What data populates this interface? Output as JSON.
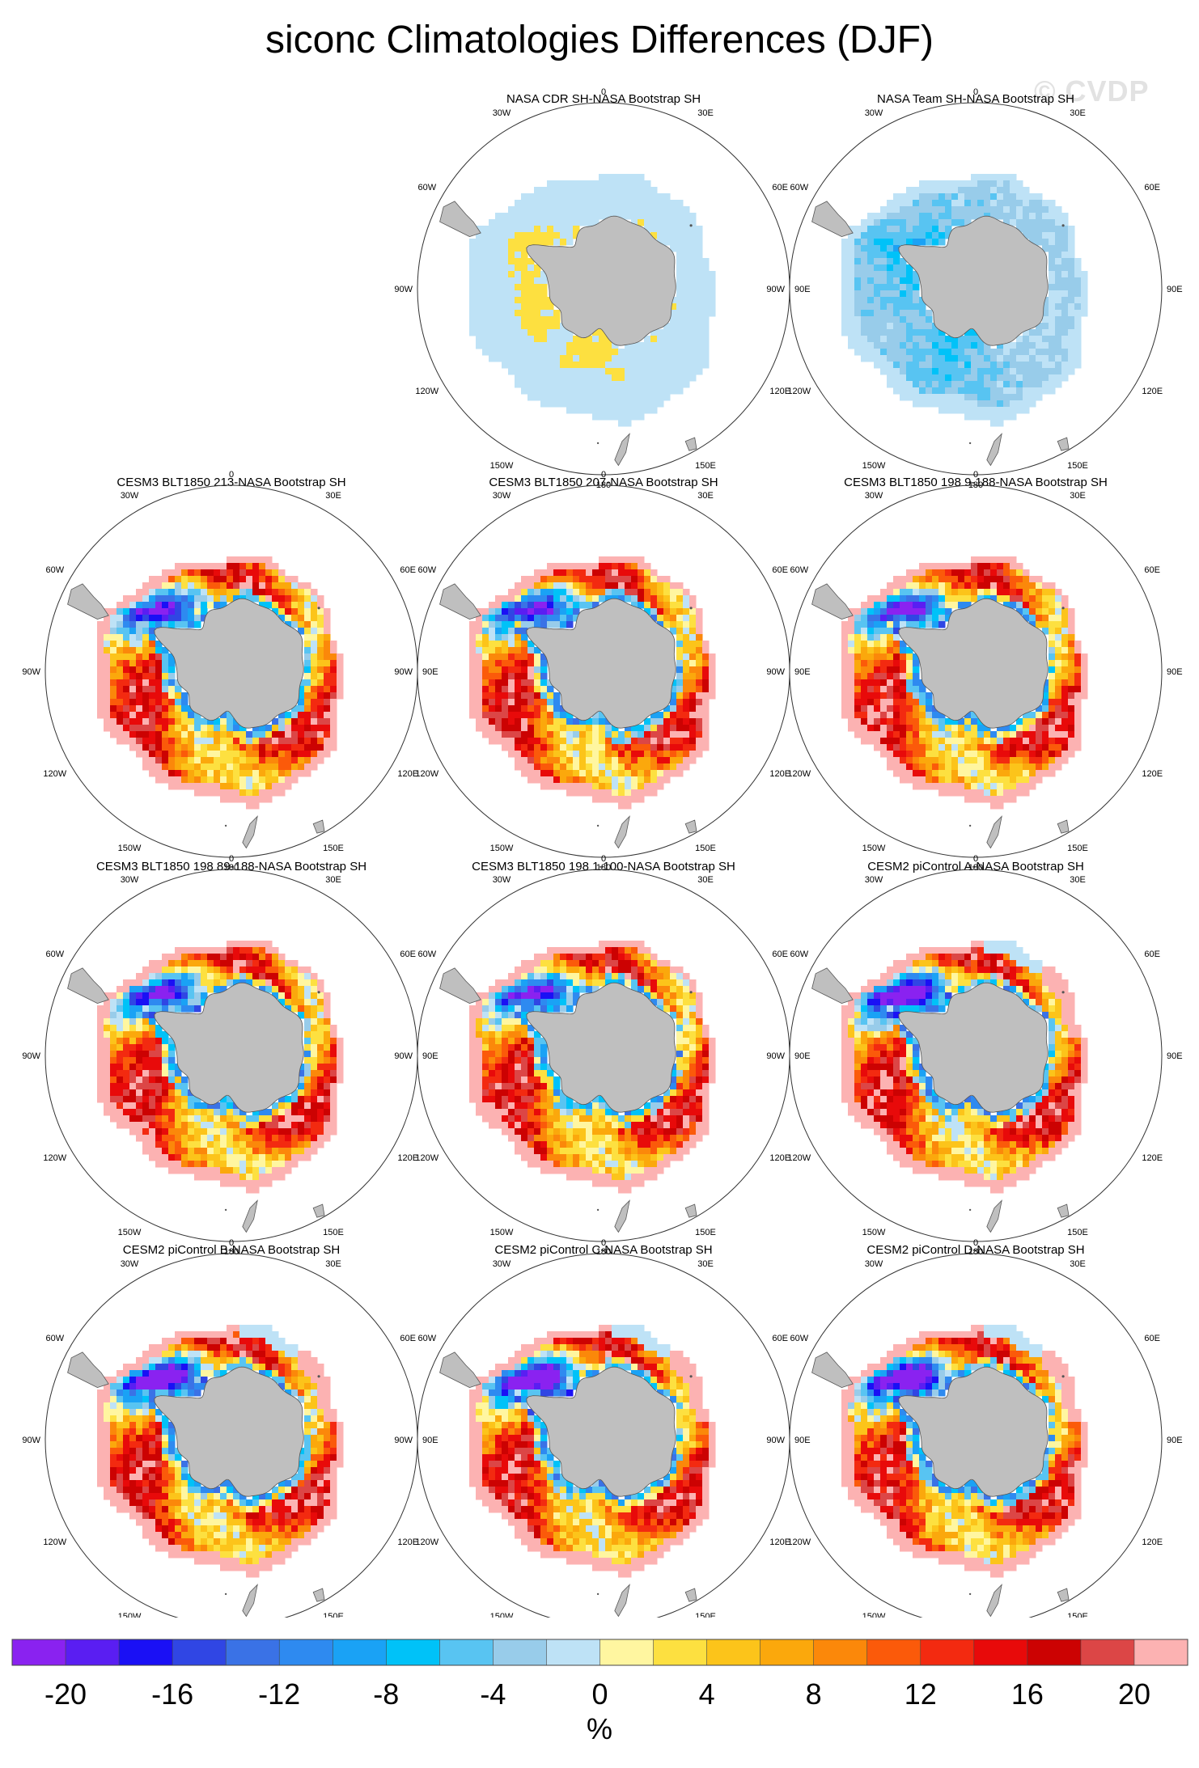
{
  "title": "siconc Climatologies Differences (DJF)",
  "watermark": "© CVDP",
  "chart_data": {
    "type": "heatmap",
    "variable": "siconc",
    "season": "DJF",
    "projection": "south polar stereographic",
    "longitude_labels": [
      "0",
      "30E",
      "60E",
      "90E",
      "120E",
      "150E",
      "180",
      "150W",
      "120W",
      "90W",
      "60W",
      "30W"
    ],
    "panels": [
      {
        "title": "",
        "empty": true
      },
      {
        "title": "NASA CDR SH-NASA Bootstrap SH",
        "style": "cdr"
      },
      {
        "title": "NASA Team SH-NASA Bootstrap SH",
        "style": "team"
      },
      {
        "title": "CESM3 BLT1850 213-NASA Bootstrap SH",
        "style": "model"
      },
      {
        "title": "CESM3 BLT1850 207-NASA Bootstrap SH",
        "style": "model"
      },
      {
        "title": "CESM3 BLT1850 198 9-188-NASA Bootstrap SH",
        "style": "model"
      },
      {
        "title": "CESM3 BLT1850 198 89-188-NASA Bootstrap SH",
        "style": "model"
      },
      {
        "title": "CESM3 BLT1850 198 1-100-NASA Bootstrap SH",
        "style": "model"
      },
      {
        "title": "CESM2 piControl A-NASA Bootstrap SH",
        "style": "cesm2"
      },
      {
        "title": "CESM2 piControl B-NASA Bootstrap SH",
        "style": "cesm2"
      },
      {
        "title": "CESM2 piControl C-NASA Bootstrap SH",
        "style": "cesm2"
      },
      {
        "title": "CESM2 piControl D-NASA Bootstrap SH",
        "style": "cesm2"
      }
    ],
    "colorbar": {
      "unit": "%",
      "min": -22,
      "max": 22,
      "step": 2,
      "tick_labels": [
        "-20",
        "-16",
        "-12",
        "-8",
        "-4",
        "0",
        "4",
        "8",
        "12",
        "16",
        "20"
      ],
      "tick_values": [
        -20,
        -16,
        -12,
        -8,
        -4,
        0,
        4,
        8,
        12,
        16,
        20
      ],
      "colors": [
        "#8A22F0",
        "#5A1EF2",
        "#1A10F5",
        "#3046E4",
        "#3A72E6",
        "#2E8AF0",
        "#1AA2F5",
        "#00C2F8",
        "#58C4F2",
        "#98CCEA",
        "#BEE2F6",
        "#FFF6A0",
        "#FDE040",
        "#FCC41A",
        "#FBA80C",
        "#FB880A",
        "#FB5A0A",
        "#F32A10",
        "#E80A0A",
        "#CC0202",
        "#DC4646",
        "#FCB2B2"
      ]
    }
  }
}
